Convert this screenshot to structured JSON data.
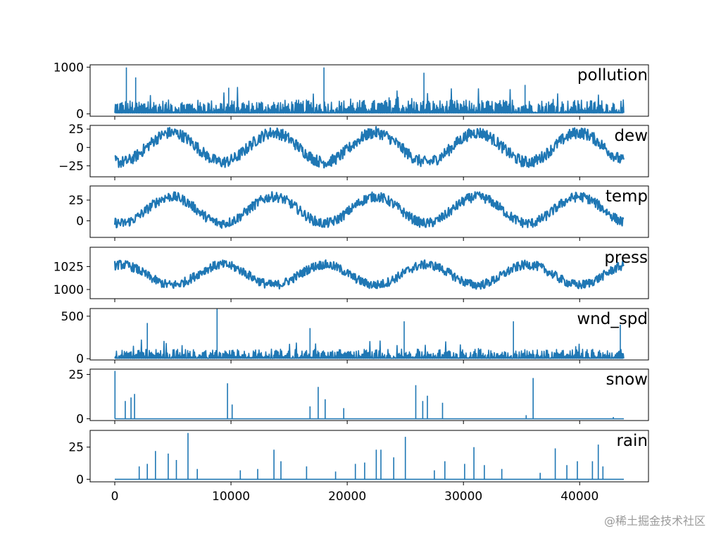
{
  "chart_data": {
    "type": "line",
    "line_color": "#1f77b4",
    "x_range": [
      0,
      43800
    ],
    "x_ticks": [
      0,
      10000,
      20000,
      30000,
      40000
    ],
    "x_tick_labels": [
      "0",
      "10000",
      "20000",
      "30000",
      "40000"
    ],
    "panels": [
      {
        "name": "pollution",
        "title": "pollution",
        "ylim": [
          -50,
          1050
        ],
        "y_ticks": [
          0,
          1000
        ],
        "y_tick_labels": [
          "0",
          "1000"
        ],
        "pattern": "spiky",
        "base": 20,
        "typical_max": 280,
        "spike_rate": 0.06,
        "peaks": [
          [
            1000,
            994
          ],
          [
            1800,
            780
          ],
          [
            18000,
            994
          ],
          [
            26600,
            880
          ],
          [
            9800,
            560
          ],
          [
            35300,
            620
          ]
        ]
      },
      {
        "name": "dew",
        "title": "dew",
        "ylim": [
          -40,
          30
        ],
        "y_ticks": [
          -25,
          0,
          25
        ],
        "y_tick_labels": [
          "−25",
          "0",
          "25"
        ],
        "pattern": "seasonal",
        "mean": 0,
        "amplitude": 20,
        "phase_peak": 4900,
        "noise": 8
      },
      {
        "name": "temp",
        "title": "temp",
        "ylim": [
          -20,
          42
        ],
        "y_ticks": [
          0,
          25
        ],
        "y_tick_labels": [
          "0",
          "25"
        ],
        "pattern": "seasonal",
        "mean": 13,
        "amplitude": 16,
        "phase_peak": 4900,
        "noise": 6
      },
      {
        "name": "press",
        "title": "press",
        "ylim": [
          990,
          1046
        ],
        "y_ticks": [
          1000,
          1025
        ],
        "y_tick_labels": [
          "1000",
          "1025"
        ],
        "pattern": "seasonal",
        "mean": 1016,
        "amplitude": -11,
        "phase_peak": 4900,
        "noise": 5
      },
      {
        "name": "wnd_spd",
        "title": "wnd_spd",
        "ylim": [
          -15,
          590
        ],
        "y_ticks": [
          0,
          500
        ],
        "y_tick_labels": [
          "0",
          "500"
        ],
        "pattern": "spiky",
        "base": 3,
        "typical_max": 110,
        "spike_rate": 0.05,
        "peaks": [
          [
            8800,
            585
          ],
          [
            24900,
            440
          ],
          [
            34300,
            440
          ],
          [
            43500,
            400
          ],
          [
            2800,
            420
          ],
          [
            16800,
            360
          ]
        ]
      },
      {
        "name": "snow",
        "title": "snow",
        "ylim": [
          -1,
          28
        ],
        "y_ticks": [
          0,
          25
        ],
        "y_tick_labels": [
          "0",
          "25"
        ],
        "pattern": "sparse",
        "peaks": [
          [
            20,
            27
          ],
          [
            900,
            10
          ],
          [
            1400,
            12
          ],
          [
            1700,
            14
          ],
          [
            9700,
            20
          ],
          [
            10100,
            8
          ],
          [
            16800,
            7
          ],
          [
            17500,
            18
          ],
          [
            18100,
            11
          ],
          [
            19700,
            6
          ],
          [
            25900,
            19
          ],
          [
            26500,
            10
          ],
          [
            26900,
            13
          ],
          [
            28200,
            9
          ],
          [
            36000,
            23
          ],
          [
            35400,
            2
          ],
          [
            42900,
            1
          ]
        ]
      },
      {
        "name": "rain",
        "title": "rain",
        "ylim": [
          -2,
          38
        ],
        "y_ticks": [
          0,
          25
        ],
        "y_tick_labels": [
          "0",
          "25"
        ],
        "pattern": "sparse",
        "peaks": [
          [
            2100,
            10
          ],
          [
            2800,
            12
          ],
          [
            3500,
            22
          ],
          [
            4600,
            20
          ],
          [
            5300,
            15
          ],
          [
            6300,
            36
          ],
          [
            7100,
            8
          ],
          [
            10800,
            7
          ],
          [
            12300,
            8
          ],
          [
            13700,
            23
          ],
          [
            14300,
            14
          ],
          [
            16500,
            10
          ],
          [
            19000,
            6
          ],
          [
            20700,
            12
          ],
          [
            21500,
            13
          ],
          [
            22500,
            23
          ],
          [
            22900,
            23
          ],
          [
            24000,
            17
          ],
          [
            25000,
            33
          ],
          [
            27500,
            7
          ],
          [
            28400,
            14
          ],
          [
            30100,
            12
          ],
          [
            30900,
            25
          ],
          [
            31800,
            11
          ],
          [
            33300,
            8
          ],
          [
            36600,
            5
          ],
          [
            37900,
            24
          ],
          [
            38900,
            11
          ],
          [
            39800,
            14
          ],
          [
            41100,
            14
          ],
          [
            41600,
            27
          ],
          [
            42000,
            10
          ]
        ]
      }
    ]
  },
  "watermark": "@稀土掘金技术社区"
}
